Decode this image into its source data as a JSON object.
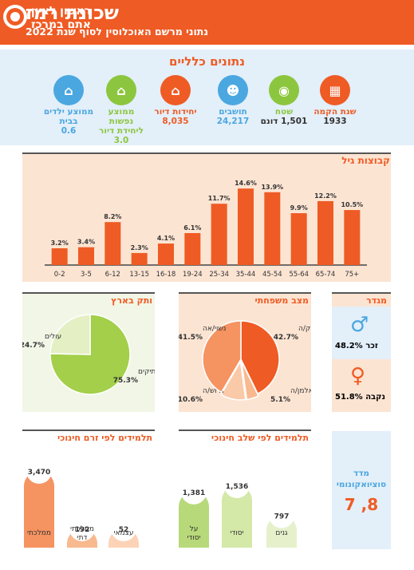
{
  "header": {
    "title": "שכונת רמז",
    "subtitle": "נתוני מרשם האוכלוסין לסוף שנת 2022",
    "logo_line1": "ראשון לציון",
    "logo_line2": "אתם במרכז"
  },
  "general": {
    "title": "נתונים כלליים",
    "stats": [
      {
        "label": "שנת הקמה",
        "value": "1933",
        "color": "#ef5b24",
        "icon": "calendar-icon"
      },
      {
        "label": "שטח",
        "value": "1,501 דונם",
        "color": "#8cc63f",
        "icon": "location-icon"
      },
      {
        "label": "תושבים",
        "value": "24,217",
        "color": "#4aa7e0",
        "icon": "people-icon"
      },
      {
        "label": "יחידות דיור",
        "value": "8,035",
        "color": "#ef5b24",
        "icon": "house-icon"
      },
      {
        "label": "ממוצע נפשות ליחידת דיור",
        "value": "3.0",
        "color": "#8cc63f",
        "icon": "family-house-icon"
      },
      {
        "label": "ממוצע ילדים בבית",
        "value": "0.6",
        "color": "#4aa7e0",
        "icon": "child-house-icon"
      }
    ]
  },
  "chart_data": [
    {
      "type": "bar",
      "title": "קבוצות גיל",
      "categories": [
        "0-2",
        "3-5",
        "6-12",
        "13-15",
        "16-18",
        "19-24",
        "25-34",
        "35-44",
        "45-54",
        "55-64",
        "65-74",
        "75+"
      ],
      "values": [
        3.2,
        3.4,
        8.2,
        2.3,
        4.1,
        6.1,
        11.7,
        14.6,
        13.9,
        9.9,
        12.2,
        10.5
      ],
      "value_labels": [
        "3.2%",
        "3.4%",
        "8.2%",
        "2.3%",
        "4.1%",
        "6.1%",
        "11.7%",
        "14.6%",
        "13.9%",
        "9.9%",
        "12.2%",
        "10.5%"
      ],
      "ylim": [
        0,
        16
      ],
      "color": "#ef5b24"
    },
    {
      "type": "pie",
      "title": "מצב משפחתי",
      "slices": [
        {
          "label": "רווק/ה",
          "value": 42.7,
          "value_label": "42.7%",
          "color": "#ef5b24"
        },
        {
          "label": "אלמן/ה",
          "value": 5.1,
          "value_label": "5.1%",
          "color": "#f9b98f"
        },
        {
          "label": "גרוש/ה",
          "value": 10.6,
          "value_label": "10.6%",
          "color": "#f9c9a8"
        },
        {
          "label": "נשוי/אה",
          "value": 41.5,
          "value_label": "41.5%",
          "color": "#f59361"
        }
      ]
    },
    {
      "type": "pie",
      "title": "ותק בארץ",
      "slices": [
        {
          "label": "ותיקים",
          "value": 75.3,
          "value_label": "75.3%",
          "color": "#a3cf4a"
        },
        {
          "label": "עולים",
          "value": 24.7,
          "value_label": "24.7%",
          "color": "#e4f0c4"
        }
      ]
    },
    {
      "type": "bar",
      "title": "תלמידים לפי זרם חינוכי",
      "categories": [
        "ממלכתי",
        "ממלכתי דתי",
        "עצמאי"
      ],
      "values": [
        3470,
        192,
        52
      ],
      "value_labels": [
        "3,470",
        "192",
        "52"
      ],
      "colors": [
        "#f59361",
        "#f9b98f",
        "#fcd3b6"
      ]
    },
    {
      "type": "bar",
      "title": "תלמידים לפי שלב חינוכי",
      "categories": [
        "על יסודי",
        "יסודי",
        "גנים"
      ],
      "values": [
        1381,
        1536,
        797
      ],
      "value_labels": [
        "1,381",
        "1,536",
        "797"
      ],
      "colors": [
        "#b8d97a",
        "#d4e8a8",
        "#e6f1cc"
      ]
    }
  ],
  "gender": {
    "title": "מגדר",
    "male_label": "זכר",
    "male_value": "48.2%",
    "female_label": "נקבה",
    "female_value": "51.8%",
    "male_color": "#4aa7e0",
    "female_color": "#ef5b24"
  },
  "socio": {
    "title": "מדד סוציואקונומי",
    "value": "7 ,8"
  }
}
